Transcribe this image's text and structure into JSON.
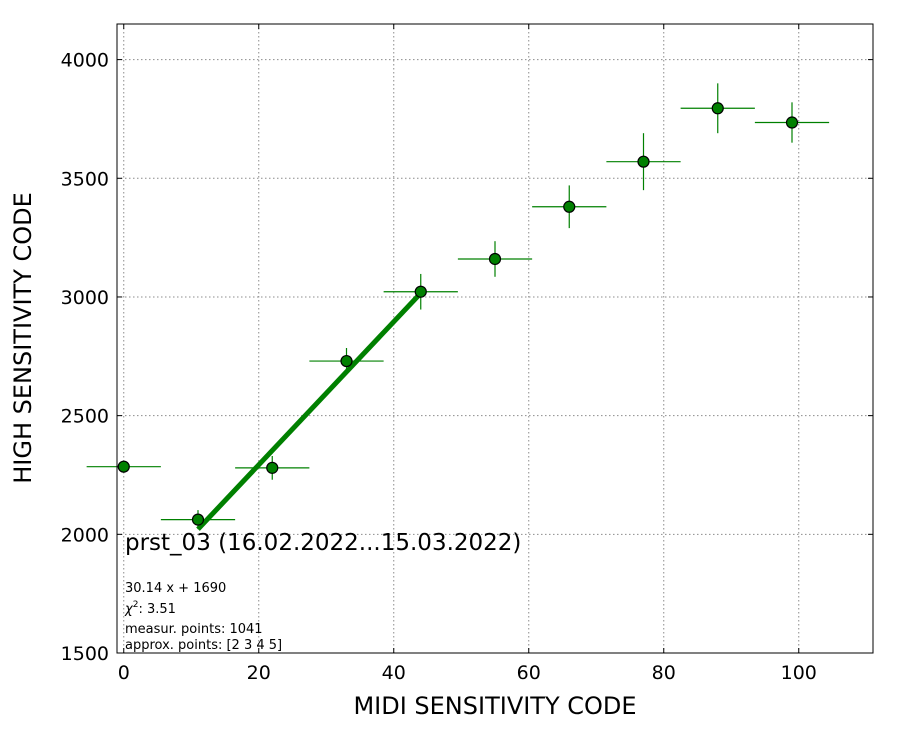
{
  "chart_data": {
    "type": "scatter",
    "title": "",
    "xlabel": "MIDI SENSITIVITY CODE",
    "ylabel": "HIGH SENSITIVITY CODE",
    "xlim": [
      -1,
      111
    ],
    "ylim": [
      1500,
      4150
    ],
    "x_ticks": [
      0,
      20,
      40,
      60,
      80,
      100
    ],
    "y_ticks": [
      1500,
      2000,
      2500,
      3000,
      3500,
      4000
    ],
    "grid": true,
    "colors": {
      "marker": "#008000",
      "marker_edge": "#000000",
      "fit_line": "#008000"
    },
    "points": [
      {
        "x": 0,
        "y": 2285,
        "xerr": 5.5,
        "yerr": 25
      },
      {
        "x": 11,
        "y": 2062,
        "xerr": 5.5,
        "yerr": 40
      },
      {
        "x": 22,
        "y": 2280,
        "xerr": 5.5,
        "yerr": 50
      },
      {
        "x": 33,
        "y": 2730,
        "xerr": 5.5,
        "yerr": 55
      },
      {
        "x": 44,
        "y": 3022,
        "xerr": 5.5,
        "yerr": 75
      },
      {
        "x": 55,
        "y": 3160,
        "xerr": 5.5,
        "yerr": 75
      },
      {
        "x": 66,
        "y": 3380,
        "xerr": 5.5,
        "yerr": 90
      },
      {
        "x": 77,
        "y": 3570,
        "xerr": 5.5,
        "yerr": 120
      },
      {
        "x": 88,
        "y": 3795,
        "xerr": 5.5,
        "yerr": 105
      },
      {
        "x": 99,
        "y": 3735,
        "xerr": 5.5,
        "yerr": 85
      }
    ],
    "fit": {
      "slope": 30.14,
      "intercept": 1690,
      "x_range": [
        11,
        44
      ]
    },
    "annotations": {
      "title": "prst_03 (16.02.2022...15.03.2022)",
      "equation": "30.14 x + 1690",
      "chi2": "3.51",
      "measur_points": "measur. points: 1041",
      "approx_points": "approx. points: [2 3 4 5]"
    }
  }
}
